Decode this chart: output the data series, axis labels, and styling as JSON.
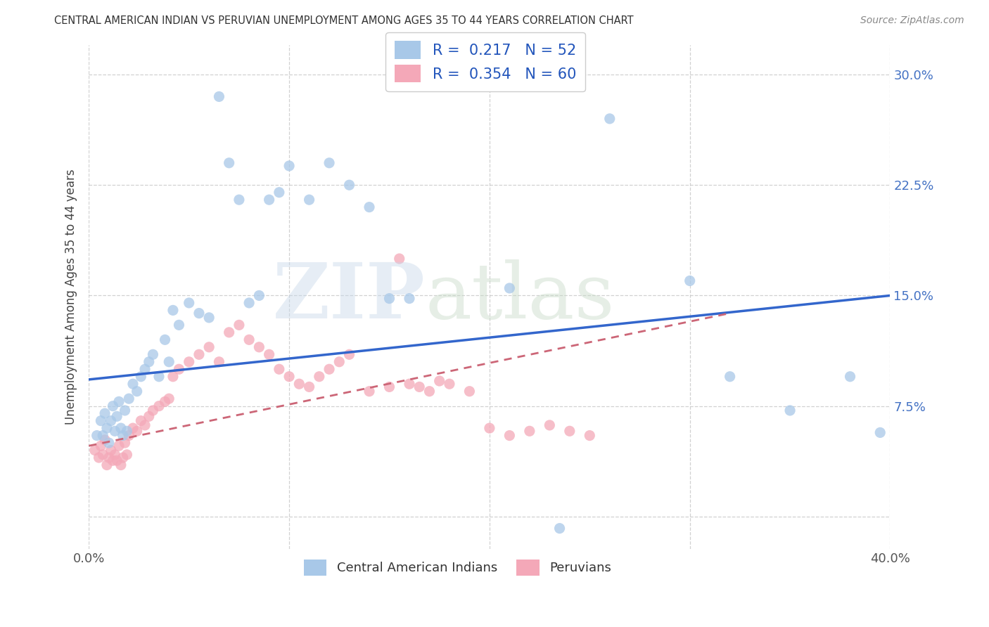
{
  "title": "CENTRAL AMERICAN INDIAN VS PERUVIAN UNEMPLOYMENT AMONG AGES 35 TO 44 YEARS CORRELATION CHART",
  "source": "Source: ZipAtlas.com",
  "ylabel": "Unemployment Among Ages 35 to 44 years",
  "xlim": [
    0.0,
    0.4
  ],
  "ylim": [
    -0.022,
    0.32
  ],
  "color_blue": "#a8c8e8",
  "color_pink": "#f4a8b8",
  "color_blue_line": "#3366cc",
  "color_pink_line": "#cc6677",
  "background": "#ffffff",
  "blue_line_x0": 0.0,
  "blue_line_x1": 0.4,
  "blue_line_y0": 0.093,
  "blue_line_y1": 0.15,
  "pink_line_x0": 0.0,
  "pink_line_x1": 0.32,
  "pink_line_y0": 0.048,
  "pink_line_y1": 0.138,
  "blue_x": [
    0.004,
    0.006,
    0.007,
    0.008,
    0.009,
    0.01,
    0.011,
    0.012,
    0.013,
    0.014,
    0.015,
    0.016,
    0.017,
    0.018,
    0.019,
    0.02,
    0.022,
    0.024,
    0.026,
    0.028,
    0.03,
    0.032,
    0.035,
    0.038,
    0.04,
    0.042,
    0.045,
    0.05,
    0.055,
    0.06,
    0.065,
    0.07,
    0.075,
    0.08,
    0.085,
    0.09,
    0.095,
    0.1,
    0.11,
    0.12,
    0.13,
    0.14,
    0.15,
    0.16,
    0.21,
    0.26,
    0.3,
    0.32,
    0.35,
    0.38,
    0.395,
    0.235
  ],
  "blue_y": [
    0.055,
    0.065,
    0.055,
    0.07,
    0.06,
    0.05,
    0.065,
    0.075,
    0.058,
    0.068,
    0.078,
    0.06,
    0.055,
    0.072,
    0.058,
    0.08,
    0.09,
    0.085,
    0.095,
    0.1,
    0.105,
    0.11,
    0.095,
    0.12,
    0.105,
    0.14,
    0.13,
    0.145,
    0.138,
    0.135,
    0.285,
    0.24,
    0.215,
    0.145,
    0.15,
    0.215,
    0.22,
    0.238,
    0.215,
    0.24,
    0.225,
    0.21,
    0.148,
    0.148,
    0.155,
    0.27,
    0.16,
    0.095,
    0.072,
    0.095,
    0.057,
    -0.008
  ],
  "pink_x": [
    0.003,
    0.005,
    0.006,
    0.007,
    0.008,
    0.009,
    0.01,
    0.011,
    0.012,
    0.013,
    0.014,
    0.015,
    0.016,
    0.017,
    0.018,
    0.019,
    0.02,
    0.022,
    0.024,
    0.026,
    0.028,
    0.03,
    0.032,
    0.035,
    0.038,
    0.04,
    0.042,
    0.045,
    0.05,
    0.055,
    0.06,
    0.065,
    0.07,
    0.075,
    0.08,
    0.085,
    0.09,
    0.095,
    0.1,
    0.105,
    0.11,
    0.115,
    0.12,
    0.125,
    0.13,
    0.14,
    0.15,
    0.155,
    0.16,
    0.165,
    0.17,
    0.175,
    0.18,
    0.19,
    0.2,
    0.21,
    0.22,
    0.23,
    0.24,
    0.25
  ],
  "pink_y": [
    0.045,
    0.04,
    0.048,
    0.042,
    0.052,
    0.035,
    0.04,
    0.045,
    0.038,
    0.042,
    0.038,
    0.048,
    0.035,
    0.04,
    0.05,
    0.042,
    0.055,
    0.06,
    0.058,
    0.065,
    0.062,
    0.068,
    0.072,
    0.075,
    0.078,
    0.08,
    0.095,
    0.1,
    0.105,
    0.11,
    0.115,
    0.105,
    0.125,
    0.13,
    0.12,
    0.115,
    0.11,
    0.1,
    0.095,
    0.09,
    0.088,
    0.095,
    0.1,
    0.105,
    0.11,
    0.085,
    0.088,
    0.175,
    0.09,
    0.088,
    0.085,
    0.092,
    0.09,
    0.085,
    0.06,
    0.055,
    0.058,
    0.062,
    0.058,
    0.055
  ]
}
